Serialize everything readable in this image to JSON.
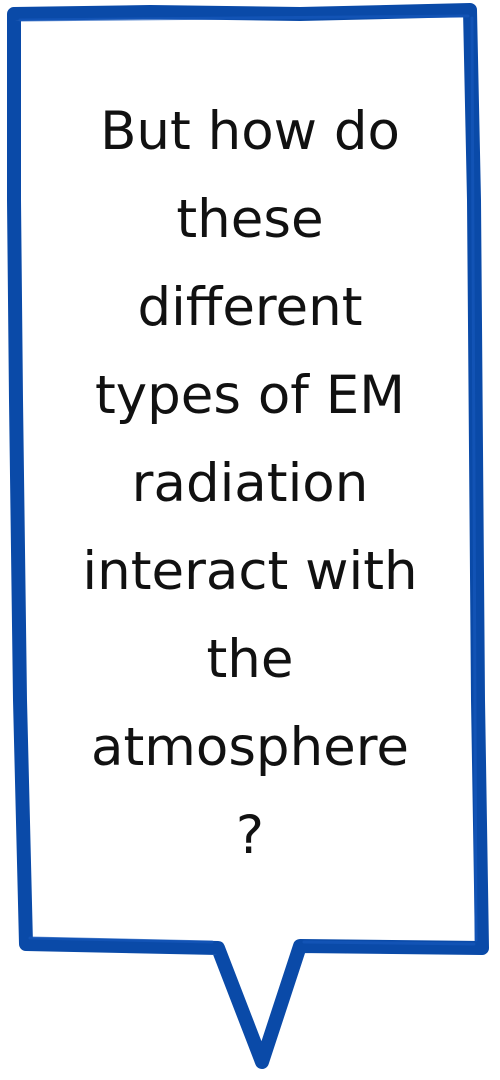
{
  "bubble": {
    "lines": [
      "But how do",
      "these",
      "different",
      "types of EM",
      "radiation",
      "interact with",
      "the",
      "atmosphere",
      "?"
    ],
    "border_color": "#0a4aa8",
    "fill_color": "#ffffff",
    "text_color": "#111111"
  }
}
